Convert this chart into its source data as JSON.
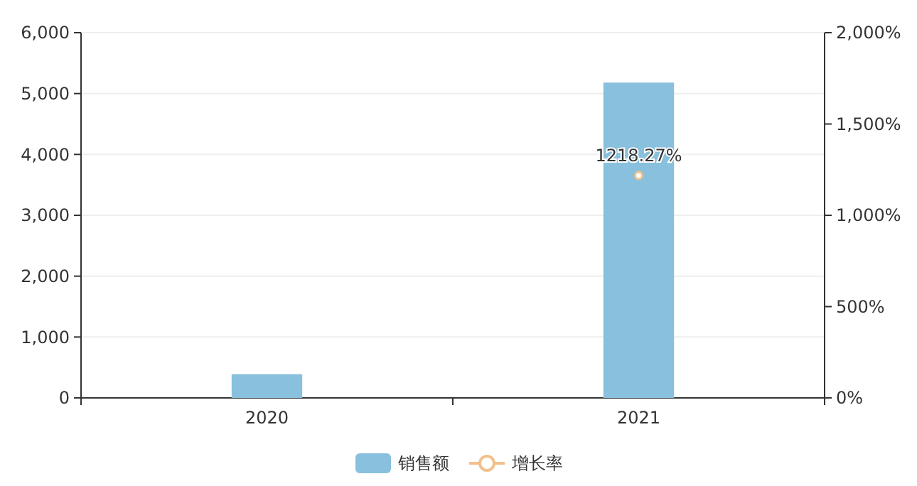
{
  "chart_data": {
    "type": "bar",
    "categories": [
      "2020",
      "2021"
    ],
    "series": [
      {
        "name": "销售额",
        "color": "#88c0dd",
        "values": [
          390,
          5180
        ]
      },
      {
        "name": "增长率",
        "type": "line",
        "axis": "y2",
        "color": "#f3c08c",
        "values": [
          null,
          1218.27
        ],
        "value_labels": [
          null,
          "1218.27%"
        ]
      }
    ],
    "ylim": [
      0,
      6000
    ],
    "yticks": [
      0,
      {
        "value": 1000,
        "label": "1,000"
      },
      {
        "value": 2000,
        "label": "2,000"
      },
      {
        "value": 3000,
        "label": "3,000"
      },
      {
        "value": 4000,
        "label": "4,000"
      },
      {
        "value": 5000,
        "label": "5,000"
      },
      {
        "value": 6000,
        "label": "6,000"
      }
    ],
    "y2lim": [
      0,
      2000
    ],
    "y2ticks": [
      {
        "value": 0,
        "label": "0%"
      },
      {
        "value": 500,
        "label": "500%"
      },
      {
        "value": 1000,
        "label": "1,000%"
      },
      {
        "value": 1500,
        "label": "1,500%"
      },
      {
        "value": 2000,
        "label": "2,000%"
      }
    ],
    "grid": "y",
    "legend": "bottom",
    "marker": "circle"
  }
}
